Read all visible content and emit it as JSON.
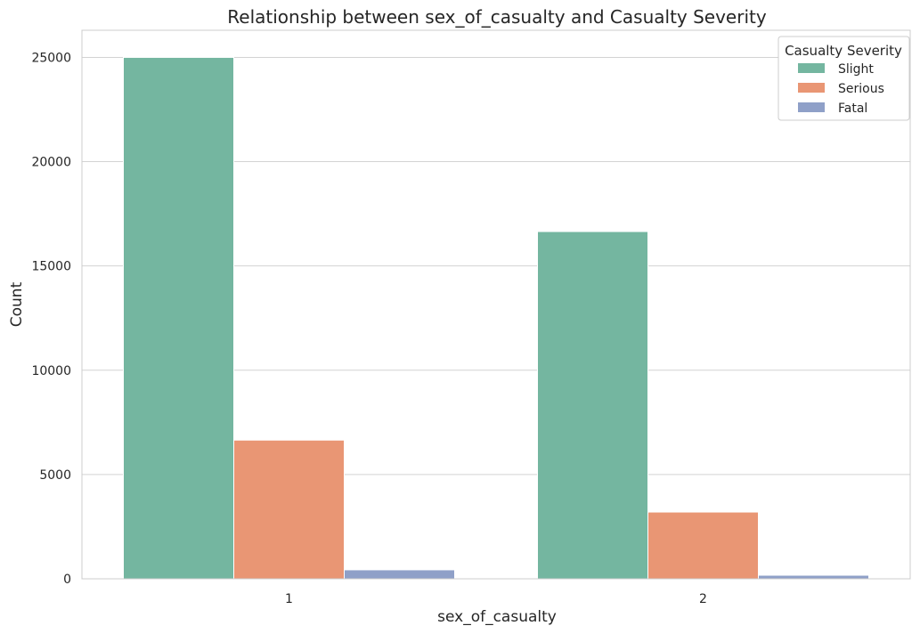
{
  "chart_data": {
    "type": "bar",
    "title": "Relationship between sex_of_casualty and Casualty Severity",
    "xlabel": "sex_of_casualty",
    "ylabel": "Count",
    "categories": [
      "1",
      "2"
    ],
    "series": [
      {
        "name": "Slight",
        "color": "#74b6a0",
        "values": [
          25000,
          16650
        ]
      },
      {
        "name": "Serious",
        "color": "#e99674",
        "values": [
          6650,
          3200
        ]
      },
      {
        "name": "Fatal",
        "color": "#8fa0c8",
        "values": [
          430,
          170
        ]
      }
    ],
    "ylim": [
      0,
      26300
    ],
    "yticks": [
      0,
      5000,
      10000,
      15000,
      20000,
      25000
    ],
    "grid": "horizontal",
    "legend": {
      "title": "Casualty Severity",
      "position": "top-right"
    }
  }
}
